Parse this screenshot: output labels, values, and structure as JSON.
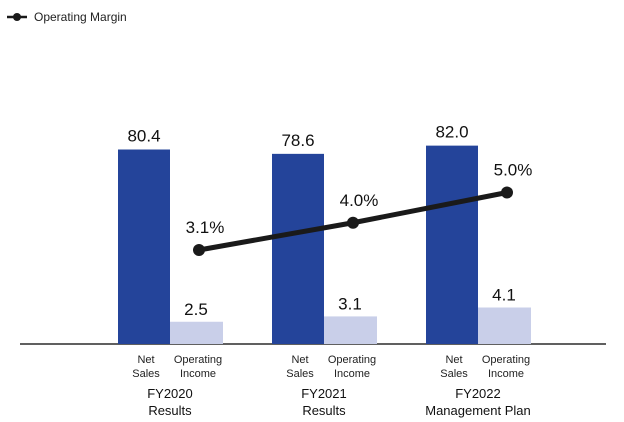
{
  "legend": {
    "label": "Operating Margin"
  },
  "colors": {
    "net_sales": "#24449a",
    "operating_income": "#c9cfe9",
    "margin_line": "#1a1a1a",
    "axis": "#000000"
  },
  "chart_data": {
    "type": "bar",
    "groups": [
      {
        "label_line1": "FY2020",
        "label_line2": "Results"
      },
      {
        "label_line1": "FY2021",
        "label_line2": "Results"
      },
      {
        "label_line1": "FY2022",
        "label_line2": "Management Plan"
      }
    ],
    "bar_labels": [
      {
        "line1": "Net",
        "line2": "Sales"
      },
      {
        "line1": "Operating",
        "line2": "Income"
      }
    ],
    "series": [
      {
        "key": "net_sales",
        "values": [
          80.4,
          78.6,
          82.0
        ],
        "labels": [
          "80.4",
          "78.6",
          "82.0"
        ]
      },
      {
        "key": "operating_income",
        "values": [
          2.5,
          3.1,
          4.1
        ],
        "labels": [
          "2.5",
          "3.1",
          "4.1"
        ]
      }
    ],
    "line_series": {
      "name": "Operating Margin",
      "values": [
        3.1,
        4.0,
        5.0
      ],
      "labels": [
        "3.1%",
        "4.0%",
        "5.0%"
      ]
    }
  }
}
